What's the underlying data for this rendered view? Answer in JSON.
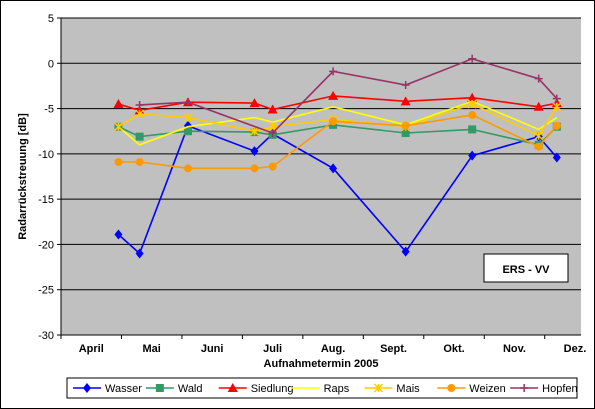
{
  "chart_data": {
    "type": "line",
    "title": "",
    "xlabel": "Aufnahmetermin 2005",
    "ylabel": "Radarrückstreuung [dB]",
    "ylim": [
      -30,
      5
    ],
    "yticks": [
      5,
      0,
      -5,
      -10,
      -15,
      -20,
      -25,
      -30
    ],
    "xlim": [
      0,
      8.6
    ],
    "month_labels": [
      "April",
      "Mai",
      "Juni",
      "Juli",
      "Aug.",
      "Sept.",
      "Okt.",
      "Nov.",
      "Dez."
    ],
    "grid": "horizontal",
    "legend": "bottom",
    "annotation": "ERS - VV",
    "plot_background": "#c0c0c0",
    "series": [
      {
        "name": "Wasser",
        "color": "#0000ff",
        "marker": "diamond",
        "points": [
          [
            0.95,
            -18.9
          ],
          [
            1.3,
            -21.0
          ],
          [
            2.1,
            -6.9
          ],
          [
            3.2,
            -9.7
          ],
          [
            3.5,
            -7.8
          ],
          [
            4.5,
            -11.6
          ],
          [
            5.7,
            -20.8
          ],
          [
            6.8,
            -10.2
          ],
          [
            7.9,
            -8.1
          ],
          [
            8.2,
            -10.4
          ]
        ]
      },
      {
        "name": "Wald",
        "color": "#339966",
        "marker": "square",
        "points": [
          [
            0.95,
            -7.0
          ],
          [
            1.3,
            -8.1
          ],
          [
            2.1,
            -7.5
          ],
          [
            3.2,
            -7.6
          ],
          [
            3.5,
            -7.9
          ],
          [
            4.5,
            -6.8
          ],
          [
            5.7,
            -7.7
          ],
          [
            6.8,
            -7.3
          ],
          [
            7.9,
            -9.0
          ],
          [
            8.2,
            -7.0
          ]
        ]
      },
      {
        "name": "Siedlung",
        "color": "#ff0000",
        "marker": "triangle",
        "points": [
          [
            0.95,
            -4.5
          ],
          [
            1.3,
            -5.2
          ],
          [
            2.1,
            -4.3
          ],
          [
            3.2,
            -4.4
          ],
          [
            3.5,
            -5.1
          ],
          [
            4.5,
            -3.6
          ],
          [
            5.7,
            -4.2
          ],
          [
            6.8,
            -3.8
          ],
          [
            7.9,
            -4.8
          ],
          [
            8.2,
            -4.4
          ]
        ]
      },
      {
        "name": "Raps",
        "color": "#ffff00",
        "marker": "none",
        "points": [
          [
            0.95,
            -7.0
          ],
          [
            1.3,
            -9.0
          ],
          [
            2.1,
            -7.0
          ],
          [
            3.2,
            -6.0
          ],
          [
            3.5,
            -6.5
          ],
          [
            4.5,
            -4.8
          ],
          [
            5.7,
            -6.8
          ],
          [
            6.8,
            -4.2
          ],
          [
            7.9,
            -7.3
          ],
          [
            8.2,
            -6.0
          ]
        ]
      },
      {
        "name": "Mais",
        "color": "#ffcc00",
        "marker": "star",
        "points": [
          [
            0.95,
            -7.0
          ],
          [
            1.3,
            -5.6
          ],
          [
            2.1,
            -6.0
          ],
          [
            3.2,
            -7.5
          ],
          [
            3.5,
            -7.0
          ],
          [
            4.5,
            -6.2
          ],
          [
            5.7,
            -7.0
          ],
          [
            6.8,
            -4.5
          ],
          [
            7.9,
            -8.0
          ],
          [
            8.2,
            -4.8
          ]
        ]
      },
      {
        "name": "Weizen",
        "color": "#ff9900",
        "marker": "circle",
        "points": [
          [
            0.95,
            -10.9
          ],
          [
            1.3,
            -10.9
          ],
          [
            2.1,
            -11.6
          ],
          [
            3.2,
            -11.6
          ],
          [
            3.5,
            -11.4
          ],
          [
            4.5,
            -6.4
          ],
          [
            5.7,
            -6.9
          ],
          [
            6.8,
            -5.7
          ],
          [
            7.9,
            -9.2
          ],
          [
            8.2,
            -6.9
          ]
        ]
      },
      {
        "name": "Hopfen",
        "color": "#993366",
        "marker": "plus",
        "points": [
          [
            1.3,
            -4.6
          ],
          [
            2.1,
            -4.3
          ],
          [
            3.5,
            -7.7
          ],
          [
            4.5,
            -0.9
          ],
          [
            5.7,
            -2.4
          ],
          [
            6.8,
            0.5
          ],
          [
            7.9,
            -1.7
          ],
          [
            8.2,
            -3.9
          ]
        ]
      }
    ]
  }
}
